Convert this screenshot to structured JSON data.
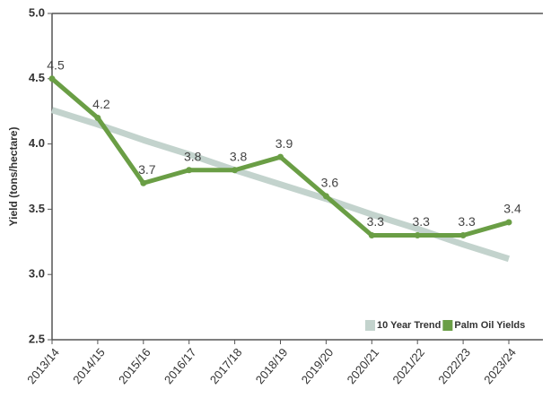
{
  "chart_data": {
    "type": "line",
    "y_label": "Yield (tons/hectare)",
    "categories": [
      "2013/14",
      "2014/15",
      "2015/16",
      "2016/17",
      "2017/18",
      "2018/19",
      "2019/20",
      "2020/21",
      "2021/22",
      "2022/23",
      "2023/24"
    ],
    "series": [
      {
        "name": "10 Year Trend",
        "color": "#c3d3cd",
        "values": [
          4.26,
          4.15,
          4.03,
          3.92,
          3.8,
          3.69,
          3.58,
          3.46,
          3.35,
          3.23,
          3.12
        ]
      },
      {
        "name": "Palm Oil Yields",
        "color": "#6a9e45",
        "values": [
          4.5,
          4.2,
          3.7,
          3.8,
          3.8,
          3.9,
          3.6,
          3.3,
          3.3,
          3.3,
          3.4
        ],
        "data_labels": true
      }
    ],
    "ylim": [
      2.5,
      5.0
    ],
    "yticks": [
      2.5,
      {
        "value": 3.0,
        "label": "3.0"
      },
      3.5,
      {
        "value": 4.0,
        "label": "4.0"
      },
      4.5,
      {
        "value": 5.0,
        "label": "5.0"
      }
    ],
    "legend": "lower right"
  }
}
